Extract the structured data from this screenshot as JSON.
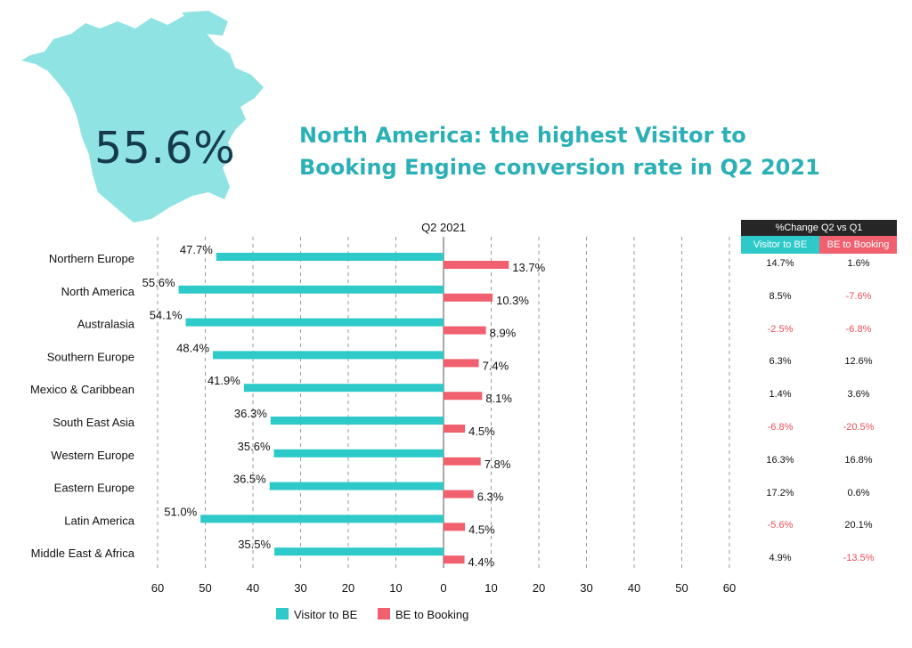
{
  "hero": {
    "value": "55.6%",
    "map_icon": "north-america-map-icon",
    "map_color": "#8fe3e3",
    "value_color": "#163a4c"
  },
  "headline": {
    "line1": "North America: the highest Visitor to",
    "line2": "Booking Engine conversion rate in Q2 2021",
    "color": "#2bb0b6"
  },
  "chart_data": {
    "type": "bar",
    "title": "Q2 2021",
    "orientation": "horizontal-diverging",
    "categories": [
      "Northern Europe",
      "North America",
      "Australasia",
      "Southern Europe",
      "Mexico & Caribbean",
      "South East Asia",
      "Western Europe",
      "Eastern Europe",
      "Latin America",
      "Middle East & Africa"
    ],
    "series": [
      {
        "name": "Visitor to BE",
        "color": "#2ec9c9",
        "values": [
          47.7,
          55.6,
          54.1,
          48.4,
          41.9,
          36.3,
          35.6,
          36.5,
          51.0,
          35.5
        ],
        "labels": [
          "47.7%",
          "55.6%",
          "54.1%",
          "48.4%",
          "41.9%",
          "36.3%",
          "35.6%",
          "36.5%",
          "51.0%",
          "35.5%"
        ]
      },
      {
        "name": "BE to Booking",
        "color": "#f0606e",
        "values": [
          13.7,
          10.3,
          8.9,
          7.4,
          8.1,
          4.5,
          7.8,
          6.3,
          4.5,
          4.4
        ],
        "labels": [
          "13.7%",
          "10.3%",
          "8.9%",
          "7.4%",
          "8.1%",
          "4.5%",
          "7.8%",
          "6.3%",
          "4.5%",
          "4.4%"
        ]
      }
    ],
    "x_ticks": [
      "60",
      "50",
      "40",
      "30",
      "20",
      "10",
      "0",
      "10",
      "20",
      "30",
      "40",
      "50",
      "60"
    ],
    "xlim": [
      -60,
      60
    ],
    "grid": "vertical-dashed",
    "legend": "bottom"
  },
  "change_table": {
    "title": "%Change Q2 vs Q1",
    "headers": [
      "Visitor to BE",
      "BE to Booking"
    ],
    "header_colors": [
      "#2ec9c9",
      "#f0606e"
    ],
    "negative_color": "#e8505b",
    "rows": [
      [
        "14.7%",
        "1.6%"
      ],
      [
        "8.5%",
        "-7.6%"
      ],
      [
        "-2.5%",
        "-6.8%"
      ],
      [
        "6.3%",
        "12.6%"
      ],
      [
        "1.4%",
        "3.6%"
      ],
      [
        "-6.8%",
        "-20.5%"
      ],
      [
        "16.3%",
        "16.8%"
      ],
      [
        "17.2%",
        "0.6%"
      ],
      [
        "-5.6%",
        "20.1%"
      ],
      [
        "4.9%",
        "-13.5%"
      ]
    ]
  }
}
